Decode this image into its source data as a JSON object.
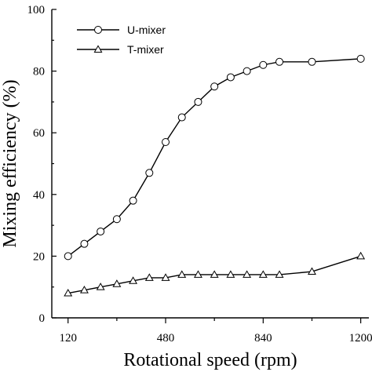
{
  "chart_data": {
    "type": "line",
    "xlabel": "Rotational speed (rpm)",
    "ylabel": "Mixing efficiency (%)",
    "xlim": [
      60,
      1230
    ],
    "ylim": [
      0,
      100
    ],
    "xticks": [
      120,
      480,
      840,
      1200
    ],
    "yticks": [
      0,
      20,
      40,
      60,
      80,
      100
    ],
    "grid": false,
    "legend": "top-left",
    "series": [
      {
        "name": "U-mixer",
        "marker": "circle",
        "x": [
          120,
          180,
          240,
          300,
          360,
          420,
          480,
          540,
          600,
          660,
          720,
          780,
          840,
          900,
          1020,
          1200
        ],
        "values": [
          20,
          24,
          28,
          32,
          38,
          47,
          57,
          65,
          70,
          75,
          78,
          80,
          82,
          83,
          83,
          84
        ]
      },
      {
        "name": "T-mixer",
        "marker": "triangle",
        "x": [
          120,
          180,
          240,
          300,
          360,
          420,
          480,
          540,
          600,
          660,
          720,
          780,
          840,
          900,
          1020,
          1200
        ],
        "values": [
          8,
          9,
          10,
          11,
          12,
          13,
          13,
          14,
          14,
          14,
          14,
          14,
          14,
          14,
          15,
          20
        ]
      }
    ]
  }
}
